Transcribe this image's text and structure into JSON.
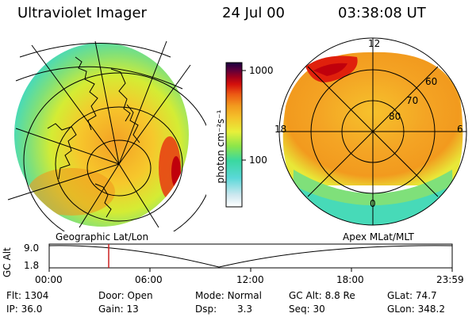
{
  "header": {
    "title": "Ultraviolet Imager",
    "date": "24 Jul 00",
    "time": "03:38:08 UT"
  },
  "left_panel": {
    "label": "Geographic Lat/Lon"
  },
  "right_panel": {
    "label": "Apex MLat/MLT",
    "mlt_labels": [
      "12",
      "18",
      "6",
      "0"
    ],
    "lat_labels": [
      "60",
      "70",
      "80"
    ]
  },
  "colorbar": {
    "unit_label": "photon cm⁻²s⁻¹",
    "ticks": [
      "1000",
      "100"
    ],
    "colors": [
      "#ffffff",
      "#cfe8f0",
      "#7fe0e0",
      "#3ad8c8",
      "#6ee27a",
      "#b7ee3a",
      "#f2f03a",
      "#f4c22a",
      "#f29a1e",
      "#ec6a14",
      "#e0200c",
      "#a0000c",
      "#5a003c",
      "#1a0040"
    ]
  },
  "altitude_plot": {
    "axis_title": "GC Alt",
    "y_ticks": [
      "9.0",
      "1.8"
    ],
    "x_ticks": [
      "00:00",
      "06:00",
      "12:00",
      "18:00",
      "23:59"
    ],
    "marker_color": "#cc2020"
  },
  "status": {
    "row1": [
      {
        "label": "Flt:",
        "value": "1304"
      },
      {
        "label": "Door:",
        "value": "Open"
      },
      {
        "label": "Mode:",
        "value": "Normal"
      },
      {
        "label": "GC Alt:",
        "value": "8.8 Re"
      },
      {
        "label": "GLat:",
        "value": "74.7"
      }
    ],
    "row2": [
      {
        "label": "IP:",
        "value": "36.0"
      },
      {
        "label": "Gain:",
        "value": "13"
      },
      {
        "label": "Dsp:",
        "value": "3.3"
      },
      {
        "label": "Seq:",
        "value": "30"
      },
      {
        "label": "GLon:",
        "value": "348.2"
      }
    ]
  }
}
